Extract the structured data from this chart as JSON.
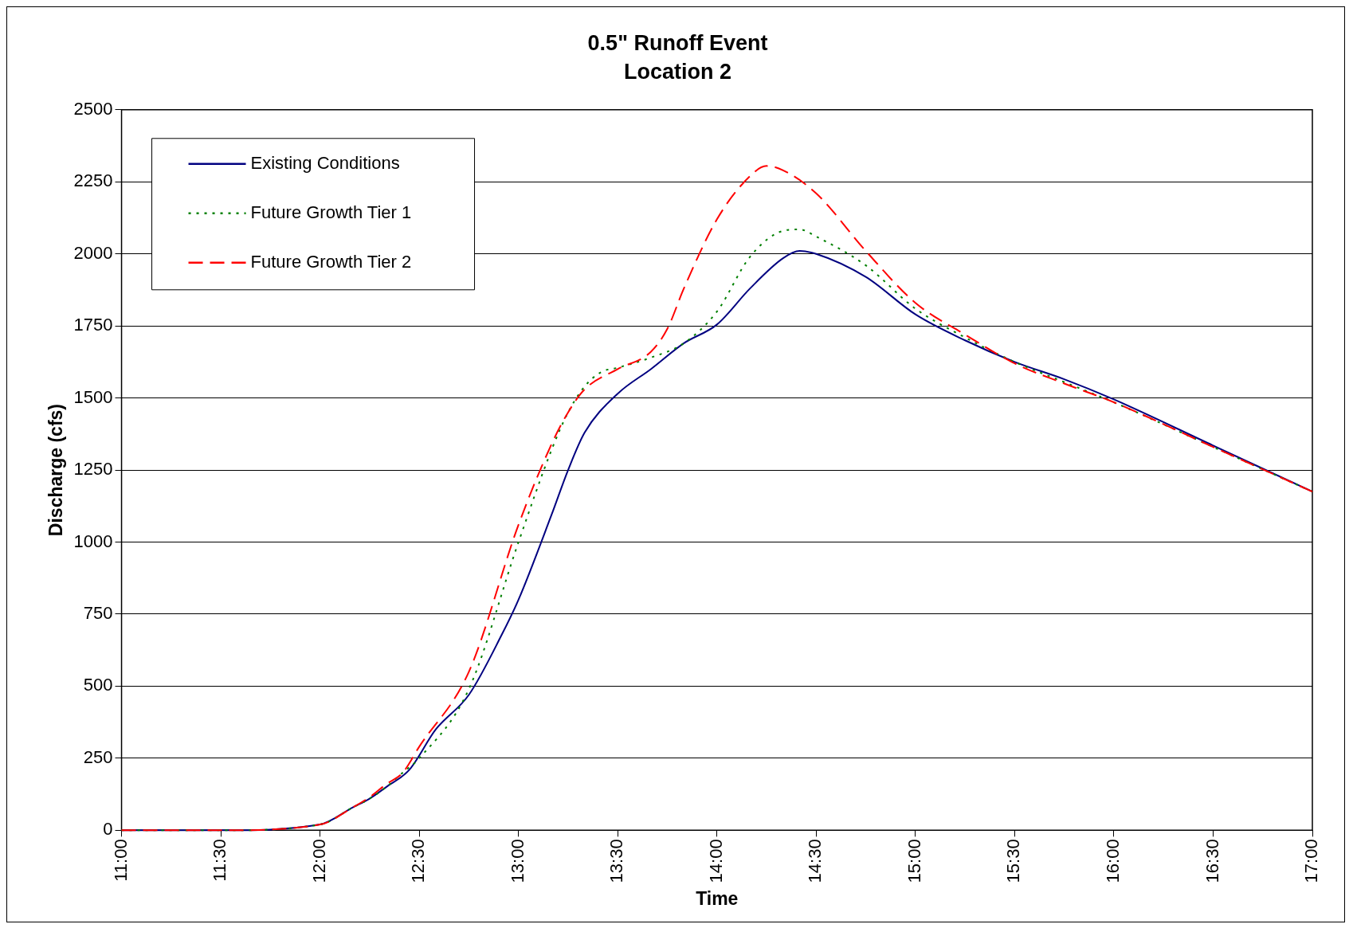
{
  "chart_data": {
    "type": "line",
    "title": "0.5\" Runoff Event",
    "subtitle": "Location 2",
    "xlabel": "Time",
    "ylabel": "Discharge (cfs)",
    "xlim": [
      11,
      17
    ],
    "xticks": [
      {
        "value": 11,
        "label": "11:00"
      },
      {
        "value": 11.5,
        "label": "11:30"
      },
      {
        "value": 12,
        "label": "12:00"
      },
      {
        "value": 12.5,
        "label": "12:30"
      },
      {
        "value": 13,
        "label": "13:00"
      },
      {
        "value": 13.5,
        "label": "13:30"
      },
      {
        "value": 14,
        "label": "14:00"
      },
      {
        "value": 14.5,
        "label": "14:30"
      },
      {
        "value": 15,
        "label": "15:00"
      },
      {
        "value": 15.5,
        "label": "15:30"
      },
      {
        "value": 16,
        "label": "16:00"
      },
      {
        "value": 16.5,
        "label": "16:30"
      },
      {
        "value": 17,
        "label": "17:00"
      }
    ],
    "ylim": [
      0,
      2500
    ],
    "yticks": [
      0,
      250,
      500,
      750,
      1000,
      1250,
      1500,
      1750,
      2000,
      2250,
      2500
    ],
    "grid": "y",
    "legend": "top left",
    "marker": "none",
    "series": [
      {
        "name": "Existing Conditions",
        "color": "#000080",
        "line_style": "solid",
        "x": [
          11,
          11.5,
          12,
          12.1667,
          12.25,
          12.3333,
          12.45,
          12.5833,
          12.75,
          12.9167,
          13,
          13.1667,
          13.25,
          13.3333,
          13.5,
          13.6667,
          13.8333,
          14,
          14.1667,
          14.3333,
          14.4167,
          14.5,
          14.75,
          15,
          15.25,
          15.5,
          15.75,
          16,
          16.5,
          17
        ],
        "values": [
          0,
          0,
          20,
          80,
          110,
          150,
          210,
          350,
          470,
          680,
          800,
          1095,
          1250,
          1380,
          1515,
          1600,
          1690,
          1755,
          1880,
          1985,
          2010,
          2000,
          1920,
          1790,
          1700,
          1625,
          1565,
          1495,
          1335,
          1175
        ]
      },
      {
        "name": "Future Growth Tier 1",
        "color": "#008000",
        "line_style": "dotted",
        "x": [
          11,
          11.5,
          12,
          12.1667,
          12.25,
          12.3333,
          12.4167,
          12.5,
          12.75,
          13,
          13.1667,
          13.25,
          13.3333,
          13.4167,
          13.5,
          13.6667,
          13.8333,
          14,
          14.1667,
          14.3333,
          14.4167,
          14.5,
          14.75,
          15,
          15.25,
          15.5,
          15.75,
          16,
          16.5,
          17
        ],
        "values": [
          0,
          0,
          20,
          80,
          110,
          150,
          200,
          250,
          490,
          1000,
          1320,
          1450,
          1540,
          1590,
          1605,
          1640,
          1690,
          1800,
          1990,
          2080,
          2085,
          2060,
          1960,
          1810,
          1710,
          1625,
          1555,
          1485,
          1330,
          1175
        ]
      },
      {
        "name": "Future Growth Tier 2",
        "color": "#ff0000",
        "line_style": "dashed",
        "x": [
          11,
          11.5,
          12,
          12.1667,
          12.25,
          12.3333,
          12.4167,
          12.5,
          12.75,
          13,
          13.1667,
          13.25,
          13.3333,
          13.5,
          13.6667,
          13.75,
          13.8333,
          14,
          14.1667,
          14.25,
          14.3333,
          14.5,
          14.75,
          15,
          15.25,
          15.5,
          15.75,
          16,
          16.5,
          17
        ],
        "values": [
          0,
          0,
          20,
          80,
          115,
          160,
          200,
          290,
          550,
          1060,
          1340,
          1450,
          1530,
          1600,
          1660,
          1740,
          1880,
          2120,
          2270,
          2305,
          2290,
          2210,
          2010,
          1830,
          1720,
          1620,
          1550,
          1485,
          1330,
          1175
        ]
      }
    ]
  }
}
